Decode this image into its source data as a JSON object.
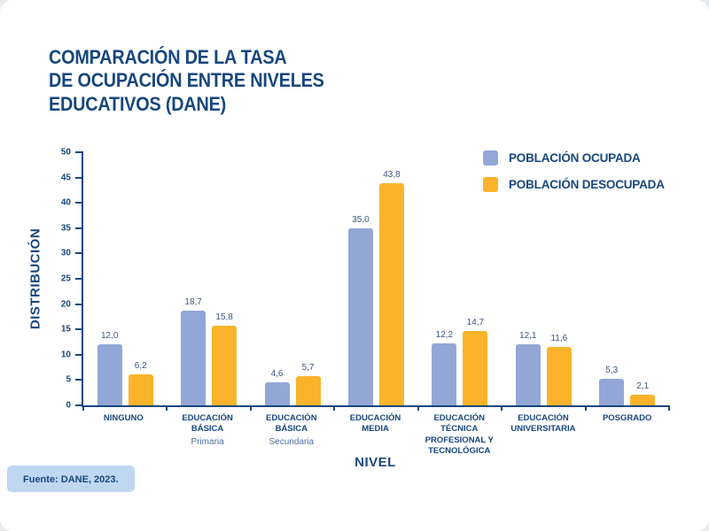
{
  "title": "COMPARACIÓN DE LA TASA\nDE OCUPACIÓN ENTRE NIVELES\nEDUCATIVOS (DANE)",
  "source": "Fuente: DANE, 2023.",
  "colors": {
    "navy": "#17477E",
    "ocupada": "#92A7D6",
    "desocupada": "#FBB32C",
    "source_bg": "#BFD8F2"
  },
  "chart_data": {
    "type": "bar",
    "title": "Comparación de la tasa de ocupación entre niveles educativos (DANE)",
    "xlabel": "NIVEL",
    "ylabel": "DISTRIBUCIÓN",
    "ylim": [
      0,
      50
    ],
    "ytick_step": 5,
    "grid": false,
    "legend_position": "top-right",
    "categories": [
      {
        "key": "ninguno",
        "label": "NINGUNO"
      },
      {
        "key": "basica-primaria",
        "label": "EDUCACIÓN BÁSICA",
        "sublabel": "Primaria"
      },
      {
        "key": "basica-secundaria",
        "label": "EDUCACIÓN BÁSICA",
        "sublabel": "Secundaria"
      },
      {
        "key": "media",
        "label": "EDUCACIÓN MEDIA"
      },
      {
        "key": "tecnica",
        "label": "EDUCACIÓN TÉCNICA\nPROFESIONAL Y\nTECNOLÓGICA"
      },
      {
        "key": "universitaria",
        "label": "EDUCACIÓN\nUNIVERSITARIA"
      },
      {
        "key": "posgrado",
        "label": "POSGRADO"
      }
    ],
    "series": [
      {
        "key": "ocupada",
        "name": "POBLACIÓN OCUPADA",
        "color": "#92A7D6",
        "values": [
          12.0,
          18.7,
          4.6,
          35.0,
          12.2,
          12.1,
          5.3
        ],
        "value_labels": [
          "12,0",
          "18,7",
          "4,6",
          "35,0",
          "12,2",
          "12,1",
          "5,3"
        ]
      },
      {
        "key": "desocupada",
        "name": "POBLACIÓN DESOCUPADA",
        "color": "#FBB32C",
        "values": [
          6.2,
          15.8,
          5.7,
          43.8,
          14.7,
          11.6,
          2.1
        ],
        "value_labels": [
          "6,2",
          "15,8",
          "5,7",
          "43,8",
          "14,7",
          "11,6",
          "2,1"
        ]
      }
    ]
  }
}
